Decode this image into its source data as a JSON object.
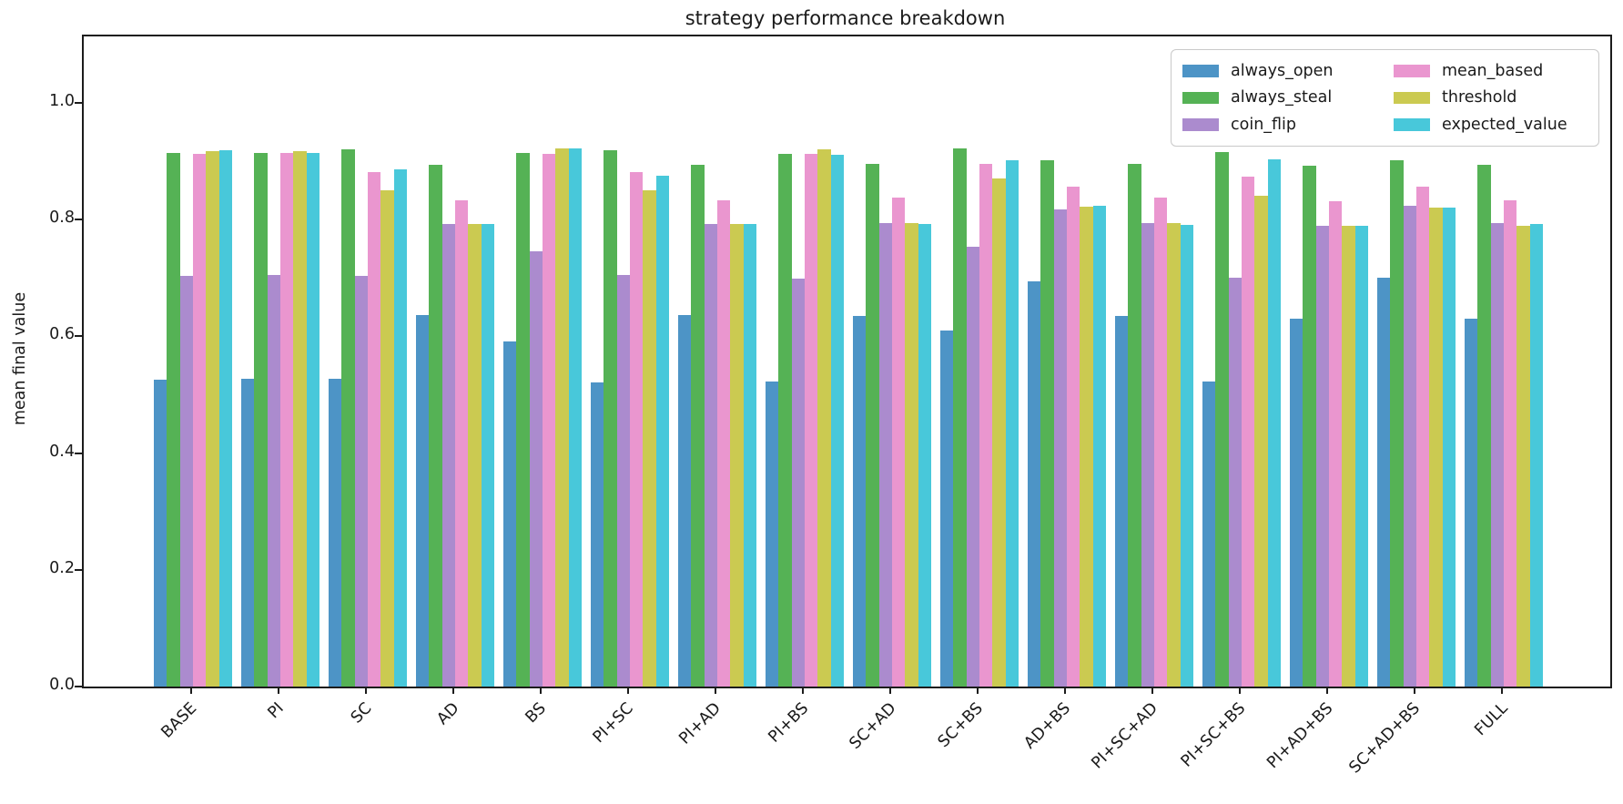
{
  "chart_data": {
    "type": "bar",
    "title": "strategy performance breakdown",
    "xlabel": "",
    "ylabel": "mean final value",
    "ylim": [
      0,
      1.114
    ],
    "yticks": [
      0.0,
      0.2,
      0.4,
      0.6,
      0.8,
      1.0
    ],
    "ytick_labels": [
      "0.0",
      "0.2",
      "0.4",
      "0.6",
      "0.8",
      "1.0"
    ],
    "grid": false,
    "legend_position": "upper-right, 2 columns",
    "xtick_rotation_deg": 45,
    "categories": [
      "BASE",
      "PI",
      "SC",
      "AD",
      "BS",
      "PI+SC",
      "PI+AD",
      "PI+BS",
      "SC+AD",
      "SC+BS",
      "AD+BS",
      "PI+SC+AD",
      "PI+SC+BS",
      "PI+AD+BS",
      "SC+AD+BS",
      "FULL"
    ],
    "series": [
      {
        "name": "always_open",
        "color": "#4d94c6",
        "values": [
          0.525,
          0.528,
          0.527,
          0.636,
          0.591,
          0.521,
          0.636,
          0.522,
          0.635,
          0.61,
          0.694,
          0.635,
          0.522,
          0.63,
          0.7,
          0.631
        ]
      },
      {
        "name": "always_steal",
        "color": "#55b255",
        "values": [
          0.915,
          0.915,
          0.92,
          0.894,
          0.915,
          0.919,
          0.894,
          0.913,
          0.895,
          0.922,
          0.902,
          0.895,
          0.916,
          0.893,
          0.901,
          0.894
        ]
      },
      {
        "name": "coin_flip",
        "color": "#ab8bce",
        "values": [
          0.704,
          0.705,
          0.704,
          0.792,
          0.746,
          0.705,
          0.792,
          0.699,
          0.794,
          0.753,
          0.818,
          0.794,
          0.7,
          0.79,
          0.823,
          0.794
        ]
      },
      {
        "name": "mean_based",
        "color": "#ea96cf",
        "values": [
          0.913,
          0.914,
          0.881,
          0.833,
          0.913,
          0.881,
          0.833,
          0.913,
          0.838,
          0.895,
          0.857,
          0.838,
          0.874,
          0.832,
          0.857,
          0.833
        ]
      },
      {
        "name": "threshold",
        "color": "#cbca51",
        "values": [
          0.917,
          0.917,
          0.85,
          0.792,
          0.922,
          0.851,
          0.792,
          0.92,
          0.794,
          0.87,
          0.822,
          0.794,
          0.841,
          0.789,
          0.821,
          0.789
        ]
      },
      {
        "name": "expected_value",
        "color": "#48c8da",
        "values": [
          0.919,
          0.914,
          0.886,
          0.792,
          0.922,
          0.875,
          0.792,
          0.911,
          0.792,
          0.901,
          0.823,
          0.791,
          0.903,
          0.79,
          0.821,
          0.792
        ]
      }
    ]
  },
  "legend": {
    "items": [
      "always_open",
      "always_steal",
      "coin_flip",
      "mean_based",
      "threshold",
      "expected_value"
    ]
  }
}
